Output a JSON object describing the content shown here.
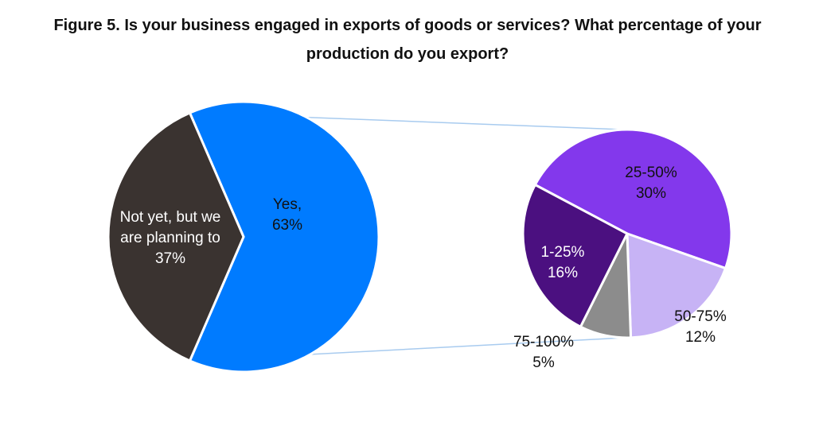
{
  "title_line1": "Figure 5. Is your business engaged in exports of goods or services? What percentage of your",
  "title_line2": "production do you export?",
  "chart_data": [
    {
      "type": "pie",
      "slices": [
        {
          "label_lines": [
            "Yes,",
            "63%"
          ],
          "category": "Yes",
          "value": 63,
          "color": "#007BFF"
        },
        {
          "label_lines": [
            "Not yet, but we",
            "are planning to",
            "37%"
          ],
          "category": "Not yet, but we are planning to",
          "value": 37,
          "color": "#3A3330"
        }
      ]
    },
    {
      "type": "pie",
      "parent_slice": "Yes",
      "slices": [
        {
          "label_lines": [
            "25-50%",
            "30%"
          ],
          "category": "25-50%",
          "value": 30,
          "color": "#8338EC"
        },
        {
          "label_lines": [
            "50-75%",
            "12%"
          ],
          "category": "50-75%",
          "value": 12,
          "color": "#C7B3F5"
        },
        {
          "label_lines": [
            "75-100%",
            "5%"
          ],
          "category": "75-100%",
          "value": 5,
          "color": "#8C8C8C"
        },
        {
          "label_lines": [
            "1-25%",
            "16%"
          ],
          "category": "1-25%",
          "value": 16,
          "color": "#4B1080"
        }
      ]
    }
  ]
}
